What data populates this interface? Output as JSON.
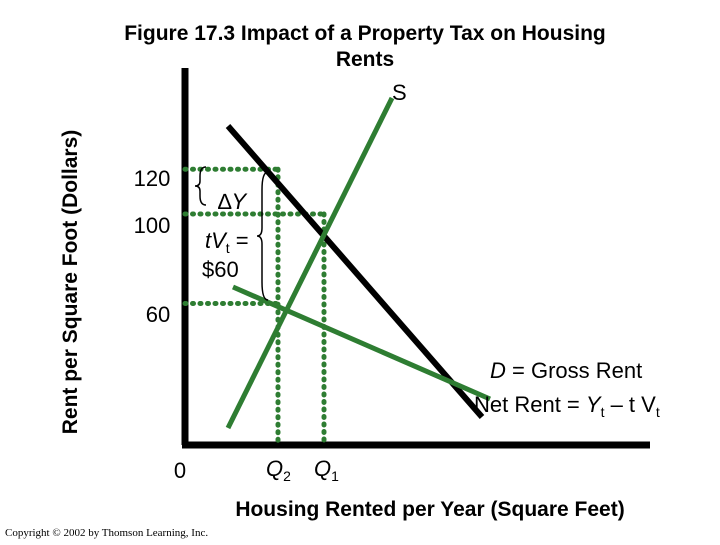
{
  "chart_data": {
    "type": "line",
    "title": "Figure 17.3 Impact of a Property Tax on Housing Rents",
    "title_lines": [
      "Figure 17.3 Impact of a Property Tax on Housing",
      "Rents"
    ],
    "xlabel": "Housing Rented per Year (Square Feet)",
    "ylabel": "Rent per Square Foot (Dollars)",
    "y_ticks": [
      "120",
      "100",
      "60"
    ],
    "y_tick_values": [
      120,
      100,
      60
    ],
    "origin_label": "0",
    "x_markers": [
      {
        "label": "Q",
        "sub": "2",
        "value": "Q2"
      },
      {
        "label": "Q",
        "sub": "1",
        "value": "Q1"
      }
    ],
    "series": [
      {
        "name": "S",
        "label": "S"
      },
      {
        "name": "D",
        "label_italic": "D",
        "label_rest": " = Gross Rent"
      },
      {
        "name": "Net Rent",
        "label_main": "Net Rent = ",
        "label_y": "Y",
        "label_sub": "t",
        "label_rest": " – t V",
        "label_sub2": "t"
      }
    ],
    "equilibria": [
      {
        "name": "before tax",
        "quantity": "Q1",
        "rent": 100
      },
      {
        "name": "after tax gross",
        "quantity": "Q2",
        "rent": 120
      },
      {
        "name": "after tax net",
        "quantity": "Q2",
        "rent": 60
      }
    ],
    "annotations": {
      "delta_y": {
        "symbol": "∆",
        "letter": "Y"
      },
      "tax": {
        "prefix": "tV",
        "sub": "t",
        "suffix": " =",
        "amount": "$60"
      }
    },
    "colors": {
      "supply": "#2e7d32",
      "demand": "#000000",
      "net_rent": "#2e7d32",
      "guides": "#2e7d32",
      "axis": "#000000"
    }
  },
  "credit": "Copyright © 2002 by Thomson Learning, Inc."
}
